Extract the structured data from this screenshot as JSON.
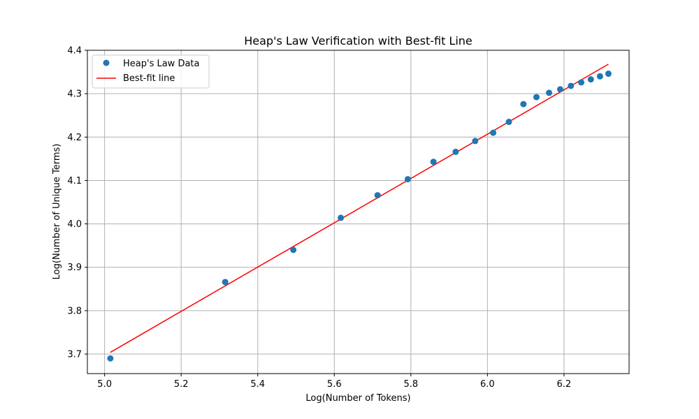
{
  "chart_data": {
    "type": "scatter",
    "title": "Heap's Law Verification with Best-fit Line",
    "xlabel": "Log(Number of Tokens)",
    "ylabel": "Log(Number of Unique Terms)",
    "xlim": [
      4.955,
      6.37
    ],
    "ylim": [
      3.655,
      4.4
    ],
    "xticks": [
      "5.0",
      "5.2",
      "5.4",
      "5.6",
      "5.8",
      "6.0",
      "6.2"
    ],
    "yticks": [
      "3.7",
      "3.8",
      "3.9",
      "4.0",
      "4.1",
      "4.2",
      "4.3",
      "4.4"
    ],
    "grid": true,
    "legend_position": "upper-left",
    "series": [
      {
        "name": "Heap's Law Data",
        "kind": "scatter",
        "color": "#1f77b4",
        "x": [
          5.015,
          5.315,
          5.493,
          5.617,
          5.713,
          5.792,
          5.859,
          5.917,
          5.968,
          6.015,
          6.056,
          6.094,
          6.128,
          6.161,
          6.19,
          6.218,
          6.245,
          6.27,
          6.294,
          6.316
        ],
        "y": [
          3.69,
          3.866,
          3.94,
          4.014,
          4.066,
          4.103,
          4.143,
          4.166,
          4.191,
          4.21,
          4.235,
          4.276,
          4.292,
          4.302,
          4.31,
          4.318,
          4.326,
          4.333,
          4.34,
          4.346
        ]
      },
      {
        "name": "Best-fit line",
        "kind": "line",
        "color": "#ff0000",
        "x": [
          5.015,
          6.316
        ],
        "y": [
          3.704,
          4.368
        ]
      }
    ]
  }
}
